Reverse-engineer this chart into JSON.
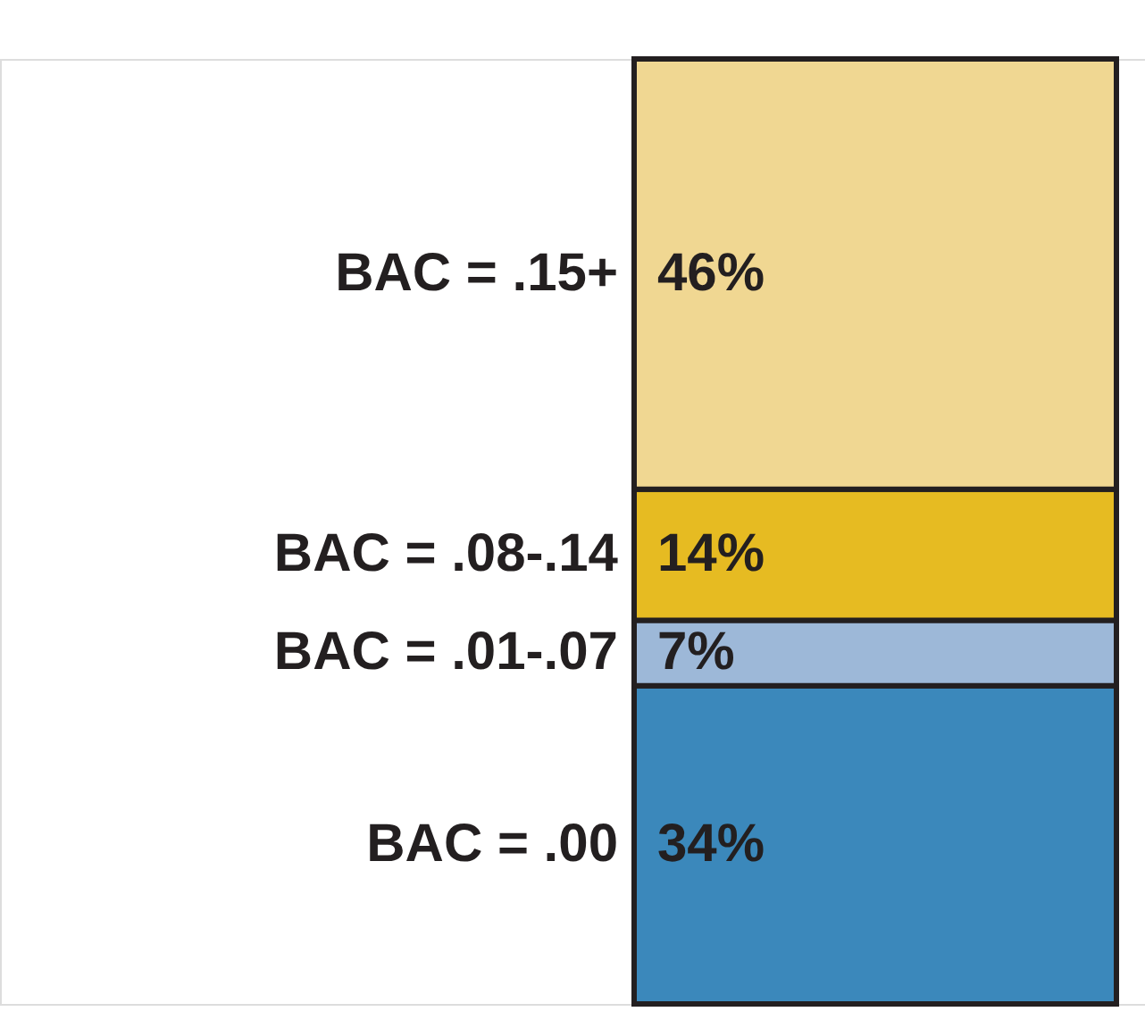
{
  "chart_data": {
    "type": "bar",
    "stacked": true,
    "categories": [
      null
    ],
    "series": [
      {
        "name": "BAC = .00",
        "color": "#3b88bb",
        "values": [
          34
        ],
        "value_labels": [
          "34%"
        ]
      },
      {
        "name": "BAC = .01-.07",
        "color": "#9db8d8",
        "values": [
          7
        ],
        "value_labels": [
          "7%"
        ]
      },
      {
        "name": "BAC = .08-.14",
        "color": "#e6bb22",
        "values": [
          14
        ],
        "value_labels": [
          "14%"
        ]
      },
      {
        "name": "BAC = .15+",
        "color": "#f0d792",
        "values": [
          46
        ],
        "value_labels": [
          "46%"
        ]
      }
    ],
    "legend": false
  }
}
